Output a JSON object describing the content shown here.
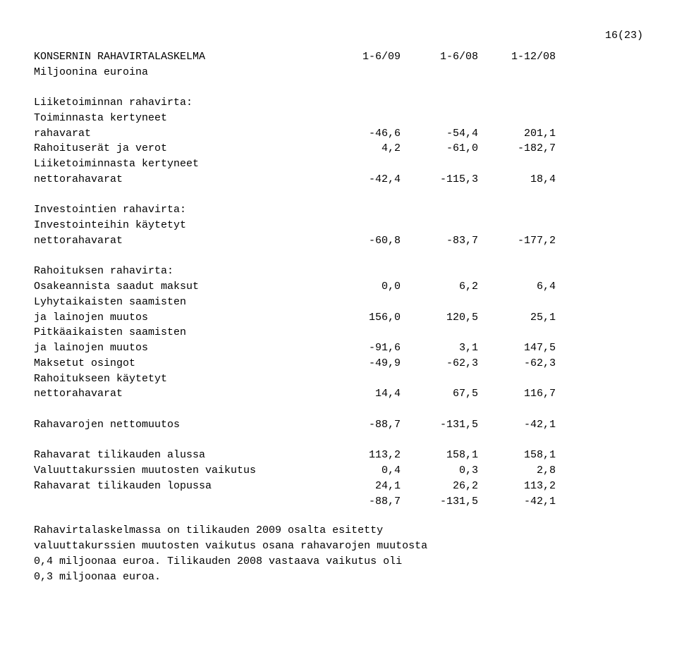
{
  "page_number": "16(23)",
  "title_row": {
    "label": "KONSERNIN RAHAVIRTALASKELMA",
    "c1": "1-6/09",
    "c2": "1-6/08",
    "c3": "1-12/08"
  },
  "subtitle": "Miljoonina euroina",
  "section1_header": "Liiketoiminnan rahavirta:",
  "section1_sub": "Toiminnasta kertyneet",
  "rows": {
    "rahavarat": {
      "label": "rahavarat",
      "c1": "-46,6",
      "c2": "-54,4",
      "c3": "201,1"
    },
    "rahoituserat": {
      "label": "Rahoituserät ja verot",
      "c1": "4,2",
      "c2": "-61,0",
      "c3": "-182,7"
    },
    "liiketoiminnasta": "Liiketoiminnasta kertyneet",
    "nettorahavarat1": {
      "label": "nettorahavarat",
      "c1": "-42,4",
      "c2": "-115,3",
      "c3": "18,4"
    },
    "section2_header": "Investointien rahavirta:",
    "section2_sub": "Investointeihin käytetyt",
    "nettorahavarat2": {
      "label": "nettorahavarat",
      "c1": "-60,8",
      "c2": "-83,7",
      "c3": "-177,2"
    },
    "section3_header": "Rahoituksen rahavirta:",
    "osakeannista": {
      "label": "Osakeannista saadut maksut",
      "c1": "0,0",
      "c2": "6,2",
      "c3": "6,4"
    },
    "lyhyt_label": "Lyhytaikaisten saamisten",
    "lyhyt_row": {
      "label": "ja lainojen muutos",
      "c1": "156,0",
      "c2": "120,5",
      "c3": "25,1"
    },
    "pitka_label": "Pitkäaikaisten saamisten",
    "pitka_row": {
      "label": "ja lainojen muutos",
      "c1": "-91,6",
      "c2": "3,1",
      "c3": "147,5"
    },
    "osingot": {
      "label": "Maksetut osingot",
      "c1": "-49,9",
      "c2": "-62,3",
      "c3": "-62,3"
    },
    "rahoitukseen_label": "Rahoitukseen käytetyt",
    "nettorahavarat3": {
      "label": "nettorahavarat",
      "c1": "14,4",
      "c2": "67,5",
      "c3": "116,7"
    },
    "nettomuutos": {
      "label": "Rahavarojen nettomuutos",
      "c1": "-88,7",
      "c2": "-131,5",
      "c3": "-42,1"
    },
    "alussa": {
      "label": "Rahavarat tilikauden alussa",
      "c1": "113,2",
      "c2": "158,1",
      "c3": "158,1"
    },
    "valuutta": {
      "label": "Valuuttakurssien muutosten vaikutus",
      "c1": "0,4",
      "c2": "0,3",
      "c3": "2,8"
    },
    "lopussa": {
      "label": "Rahavarat tilikauden lopussa",
      "c1": "24,1",
      "c2": "26,2",
      "c3": "113,2"
    },
    "summary": {
      "label": "",
      "c1": "-88,7",
      "c2": "-131,5",
      "c3": "-42,1"
    }
  },
  "footnote": "Rahavirtalaskelmassa on tilikauden 2009 osalta esitetty\nvaluuttakurssien muutosten vaikutus osana rahavarojen muutosta\n0,4 miljoonaa euroa. Tilikauden 2008 vastaava vaikutus oli\n0,3 miljoonaa euroa."
}
